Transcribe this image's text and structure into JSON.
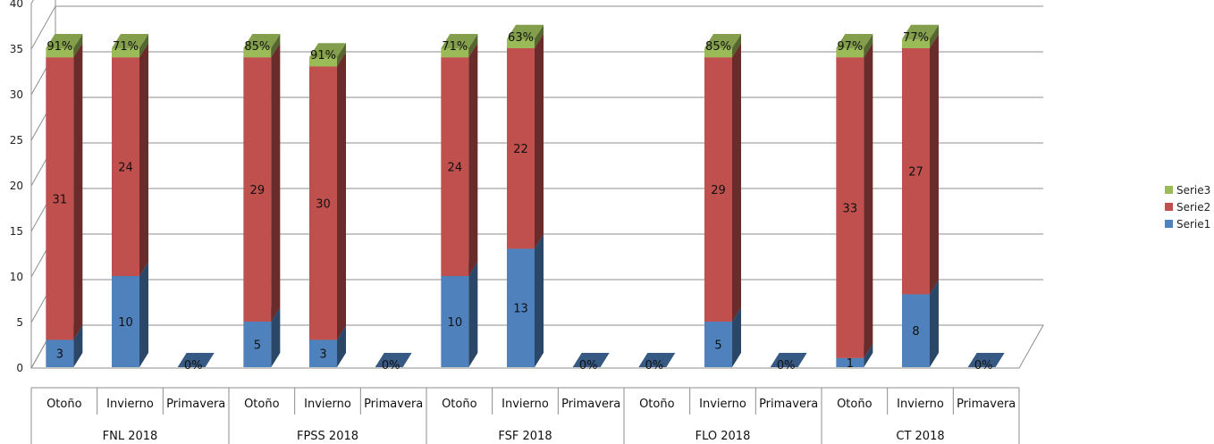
{
  "chart_data": {
    "type": "bar",
    "stacked": true,
    "three_d": true,
    "title": "",
    "xlabel": "",
    "ylabel": "",
    "ylim": [
      0,
      40
    ],
    "yticks": [
      0,
      5,
      10,
      15,
      20,
      25,
      30,
      35,
      40
    ],
    "grid": true,
    "legend_position": "right",
    "groups": [
      {
        "label": "FNL 2018",
        "categories": [
          "Otoño",
          "Invierno",
          "Primavera"
        ]
      },
      {
        "label": "FPSS 2018",
        "categories": [
          "Otoño",
          "Invierno",
          "Primavera"
        ]
      },
      {
        "label": "FSF 2018",
        "categories": [
          "Otoño",
          "Invierno",
          "Primavera"
        ]
      },
      {
        "label": "FLO  2018",
        "categories": [
          "Otoño",
          "Invierno",
          "Primavera"
        ]
      },
      {
        "label": "CT  2018",
        "categories": [
          "Otoño",
          "Invierno",
          "Primavera"
        ]
      }
    ],
    "series": [
      {
        "name": "Serie1",
        "color": "#4f81bd",
        "values": [
          3,
          10,
          0,
          5,
          3,
          0,
          10,
          13,
          0,
          0,
          5,
          0,
          1,
          8,
          0
        ],
        "labels": [
          "3",
          "10",
          "0",
          "5",
          "3",
          "0",
          "10",
          "13",
          "0",
          "0",
          "5",
          "0",
          "1",
          "8",
          "0"
        ]
      },
      {
        "name": "Serie2",
        "color": "#c0504d",
        "values": [
          31,
          24,
          0,
          29,
          30,
          0,
          24,
          22,
          0,
          0,
          29,
          0,
          33,
          27,
          0
        ],
        "labels": [
          "31",
          "24",
          "",
          "29",
          "30",
          "",
          "24",
          "22",
          "",
          "",
          "29",
          "",
          "33",
          "27",
          ""
        ]
      },
      {
        "name": "Serie3",
        "color": "#9bbb59",
        "values": [
          0.91,
          0.71,
          0,
          0.85,
          0.91,
          0,
          0.71,
          0.63,
          0,
          0,
          0.85,
          0,
          0.97,
          0.77,
          0
        ],
        "labels": [
          "91%",
          "71%",
          "0%",
          "85%",
          "91%",
          "0%",
          "71%",
          "63%",
          "0%",
          "0%",
          "85%",
          "0%",
          "97%",
          "77%",
          "0%"
        ]
      }
    ],
    "legend": [
      "Serie3",
      "Serie2",
      "Serie1"
    ]
  }
}
